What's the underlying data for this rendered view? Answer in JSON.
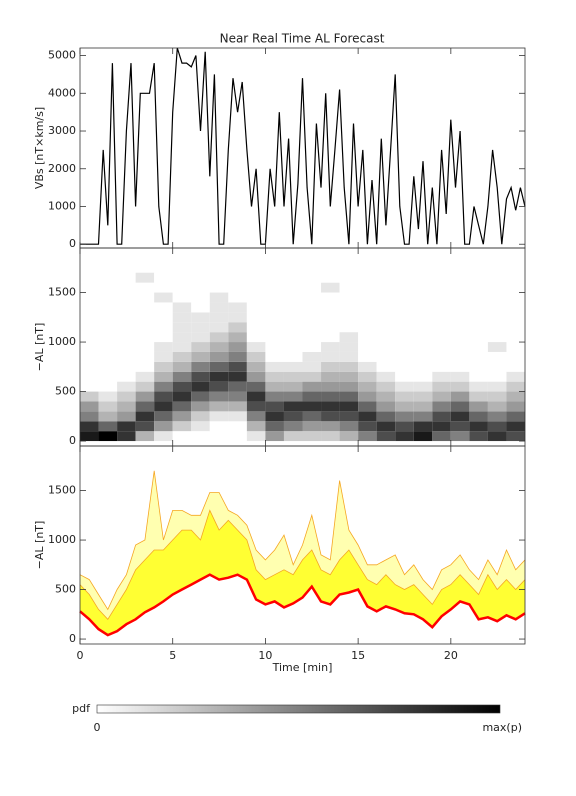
{
  "chart_data": [
    {
      "type": "line",
      "title": "Near Real Time AL Forecast",
      "ylabel": "VBs [nT×km/s]",
      "color": "#000000",
      "x": [
        0,
        0.25,
        0.5,
        0.75,
        1,
        1.25,
        1.5,
        1.75,
        2,
        2.25,
        2.5,
        2.75,
        3,
        3.25,
        3.5,
        3.75,
        4,
        4.25,
        4.5,
        4.75,
        5,
        5.25,
        5.5,
        5.75,
        6,
        6.25,
        6.5,
        6.75,
        7,
        7.25,
        7.5,
        7.75,
        8,
        8.25,
        8.5,
        8.75,
        9,
        9.25,
        9.5,
        9.75,
        10,
        10.25,
        10.5,
        10.75,
        11,
        11.25,
        11.5,
        11.75,
        12,
        12.25,
        12.5,
        12.75,
        13,
        13.25,
        13.5,
        13.75,
        14,
        14.25,
        14.5,
        14.75,
        15,
        15.25,
        15.5,
        15.75,
        16,
        16.25,
        16.5,
        16.75,
        17,
        17.25,
        17.5,
        17.75,
        18,
        18.25,
        18.5,
        18.75,
        19,
        19.25,
        19.5,
        19.75,
        20,
        20.25,
        20.5,
        20.75,
        21,
        21.25,
        21.5,
        21.75,
        22,
        22.25,
        22.5,
        22.75,
        23,
        23.25,
        23.5,
        23.75,
        24
      ],
      "values": [
        0,
        0,
        0,
        0,
        0,
        2500,
        500,
        4800,
        0,
        0,
        3000,
        4800,
        1000,
        4000,
        4000,
        4000,
        4800,
        1000,
        0,
        0,
        3500,
        5200,
        4800,
        4800,
        4700,
        5000,
        3000,
        5100,
        1800,
        4500,
        0,
        0,
        2500,
        4400,
        3500,
        4300,
        2500,
        1000,
        2000,
        0,
        0,
        2000,
        1000,
        3500,
        1000,
        2800,
        0,
        1600,
        4400,
        1500,
        0,
        3200,
        1500,
        4000,
        1000,
        2500,
        4100,
        1500,
        0,
        3200,
        1000,
        2500,
        0,
        1700,
        0,
        2800,
        500,
        2500,
        4500,
        1000,
        0,
        0,
        1800,
        400,
        2200,
        0,
        1500,
        0,
        2500,
        800,
        3300,
        1500,
        3000,
        0,
        0,
        1000,
        500,
        0,
        1000,
        2500,
        1500,
        0,
        1200,
        1500,
        900,
        1500,
        1000
      ],
      "xlim": [
        0,
        24
      ],
      "ylim": [
        -100,
        5200
      ],
      "yticks": [
        0,
        1000,
        2000,
        3000,
        4000,
        5000
      ]
    },
    {
      "type": "heatmap",
      "ylabel": "−AL [nT]",
      "xbins": [
        0,
        1,
        2,
        3,
        4,
        5,
        6,
        7,
        8,
        9,
        10,
        11,
        12,
        13,
        14,
        15,
        16,
        17,
        18,
        19,
        20,
        21,
        22,
        23,
        24
      ],
      "ybins": [
        0,
        100,
        200,
        300,
        400,
        500,
        600,
        700,
        800,
        900,
        1000,
        1100,
        1200,
        1300,
        1400,
        1500,
        1600,
        1700
      ],
      "z": [
        [
          0.9,
          0.8,
          0.5,
          0.4,
          0.2,
          0,
          0,
          0,
          0,
          0,
          0,
          0,
          0,
          0,
          0,
          0,
          0
        ],
        [
          1,
          0.6,
          0.3,
          0.2,
          0.1,
          0,
          0,
          0,
          0,
          0,
          0,
          0,
          0,
          0,
          0,
          0,
          0
        ],
        [
          0.8,
          0.8,
          0.4,
          0.3,
          0.2,
          0.1,
          0,
          0,
          0,
          0,
          0,
          0,
          0,
          0,
          0,
          0,
          0
        ],
        [
          0.3,
          0.7,
          0.8,
          0.6,
          0.4,
          0.2,
          0.1,
          0,
          0,
          0,
          0,
          0,
          0,
          0,
          0,
          0,
          0.1
        ],
        [
          0.1,
          0.4,
          0.6,
          0.8,
          0.7,
          0.5,
          0.3,
          0.2,
          0.1,
          0.1,
          0,
          0,
          0,
          0,
          0.1,
          0,
          0
        ],
        [
          0,
          0.2,
          0.4,
          0.6,
          0.8,
          0.7,
          0.5,
          0.3,
          0.2,
          0.1,
          0.1,
          0.1,
          0.1,
          0.1,
          0,
          0,
          0
        ],
        [
          0,
          0.1,
          0.2,
          0.4,
          0.6,
          0.8,
          0.7,
          0.5,
          0.3,
          0.2,
          0.1,
          0.1,
          0.1,
          0,
          0,
          0,
          0
        ],
        [
          0,
          0,
          0.1,
          0.3,
          0.5,
          0.7,
          0.8,
          0.6,
          0.4,
          0.3,
          0.2,
          0.1,
          0.1,
          0.1,
          0.1,
          0,
          0
        ],
        [
          0,
          0,
          0.1,
          0.3,
          0.5,
          0.6,
          0.8,
          0.7,
          0.5,
          0.4,
          0.3,
          0.2,
          0.1,
          0.1,
          0,
          0,
          0
        ],
        [
          0.1,
          0.3,
          0.5,
          0.7,
          0.8,
          0.6,
          0.4,
          0.3,
          0.2,
          0.1,
          0,
          0,
          0,
          0,
          0,
          0,
          0
        ],
        [
          0.4,
          0.6,
          0.8,
          0.7,
          0.5,
          0.3,
          0.2,
          0.1,
          0,
          0,
          0,
          0,
          0,
          0,
          0,
          0,
          0
        ],
        [
          0.2,
          0.5,
          0.7,
          0.8,
          0.5,
          0.3,
          0.2,
          0.1,
          0,
          0,
          0,
          0,
          0,
          0,
          0,
          0,
          0
        ],
        [
          0.2,
          0.4,
          0.6,
          0.8,
          0.6,
          0.4,
          0.2,
          0.1,
          0.1,
          0,
          0,
          0,
          0,
          0,
          0,
          0,
          0
        ],
        [
          0.2,
          0.4,
          0.7,
          0.8,
          0.6,
          0.4,
          0.3,
          0.2,
          0.1,
          0.1,
          0,
          0,
          0,
          0,
          0,
          0.1,
          0
        ],
        [
          0.3,
          0.5,
          0.7,
          0.8,
          0.6,
          0.4,
          0.3,
          0.2,
          0.1,
          0.1,
          0.1,
          0,
          0,
          0,
          0,
          0,
          0
        ],
        [
          0.5,
          0.7,
          0.8,
          0.6,
          0.4,
          0.3,
          0.2,
          0.1,
          0,
          0,
          0,
          0,
          0,
          0,
          0,
          0,
          0
        ],
        [
          0.7,
          0.8,
          0.6,
          0.4,
          0.3,
          0.2,
          0.1,
          0,
          0,
          0,
          0,
          0,
          0,
          0,
          0,
          0,
          0
        ],
        [
          0.8,
          0.7,
          0.5,
          0.3,
          0.2,
          0.1,
          0,
          0,
          0,
          0,
          0,
          0,
          0,
          0,
          0,
          0,
          0
        ],
        [
          0.9,
          0.8,
          0.5,
          0.3,
          0.2,
          0.1,
          0,
          0,
          0,
          0,
          0,
          0,
          0,
          0,
          0,
          0,
          0
        ],
        [
          0.6,
          0.8,
          0.7,
          0.5,
          0.3,
          0.2,
          0.1,
          0,
          0,
          0,
          0,
          0,
          0,
          0,
          0,
          0,
          0
        ],
        [
          0.5,
          0.7,
          0.8,
          0.6,
          0.4,
          0.2,
          0.1,
          0,
          0,
          0,
          0,
          0,
          0,
          0,
          0,
          0,
          0
        ],
        [
          0.7,
          0.8,
          0.6,
          0.4,
          0.2,
          0.1,
          0,
          0,
          0,
          0,
          0,
          0,
          0,
          0,
          0,
          0,
          0
        ],
        [
          0.8,
          0.7,
          0.5,
          0.3,
          0.2,
          0.1,
          0,
          0,
          0,
          0.1,
          0,
          0,
          0,
          0,
          0,
          0,
          0
        ],
        [
          0.7,
          0.8,
          0.6,
          0.4,
          0.3,
          0.2,
          0.1,
          0,
          0,
          0,
          0,
          0,
          0,
          0,
          0,
          0,
          0
        ]
      ],
      "xlim": [
        0,
        24
      ],
      "ylim": [
        -50,
        1950
      ],
      "yticks": [
        0,
        500,
        1000,
        1500
      ]
    },
    {
      "type": "band",
      "ylabel": "−AL [nT]",
      "xlabel": "Time [min]",
      "x": [
        0,
        0.5,
        1,
        1.5,
        2,
        2.5,
        3,
        3.5,
        4,
        4.5,
        5,
        5.5,
        6,
        6.5,
        7,
        7.5,
        8,
        8.5,
        9,
        9.5,
        10,
        10.5,
        11,
        11.5,
        12,
        12.5,
        13,
        13.5,
        14,
        14.5,
        15,
        15.5,
        16,
        16.5,
        17,
        17.5,
        18,
        18.5,
        19,
        19.5,
        20,
        20.5,
        21,
        21.5,
        22,
        22.5,
        23,
        23.5,
        24
      ],
      "series": [
        {
          "color": "#ff0000",
          "values": [
            280,
            200,
            100,
            40,
            80,
            150,
            200,
            270,
            320,
            380,
            450,
            500,
            550,
            600,
            650,
            600,
            620,
            650,
            600,
            400,
            350,
            380,
            320,
            360,
            420,
            530,
            380,
            350,
            450,
            470,
            500,
            330,
            280,
            330,
            300,
            260,
            250,
            200,
            120,
            230,
            300,
            380,
            350,
            200,
            220,
            180,
            240,
            200,
            260
          ]
        },
        {
          "color": "#ffff33",
          "values": [
            550,
            450,
            300,
            200,
            350,
            500,
            700,
            800,
            900,
            900,
            1000,
            1100,
            1100,
            1000,
            1300,
            1100,
            1200,
            1100,
            1000,
            700,
            600,
            650,
            700,
            650,
            800,
            900,
            700,
            650,
            800,
            900,
            750,
            600,
            550,
            650,
            550,
            500,
            550,
            450,
            350,
            500,
            550,
            650,
            550,
            450,
            650,
            500,
            600,
            500,
            600
          ]
        },
        {
          "color": "#f5a623",
          "values": [
            650,
            600,
            450,
            300,
            500,
            650,
            950,
            1000,
            1700,
            1000,
            1300,
            1300,
            1250,
            1250,
            1480,
            1480,
            1300,
            1250,
            1150,
            900,
            800,
            900,
            1050,
            750,
            950,
            1250,
            850,
            800,
            1600,
            1100,
            950,
            750,
            750,
            800,
            850,
            650,
            750,
            600,
            500,
            700,
            750,
            850,
            700,
            600,
            800,
            650,
            900,
            700,
            800
          ]
        }
      ],
      "xlim": [
        0,
        24
      ],
      "ylim": [
        -50,
        1950
      ],
      "yticks": [
        0,
        500,
        1000,
        1500
      ],
      "xticks": [
        0,
        5,
        10,
        15,
        20
      ]
    }
  ],
  "colorbar": {
    "label": "pdf",
    "min_label": "0",
    "max_label": "max(p)"
  }
}
